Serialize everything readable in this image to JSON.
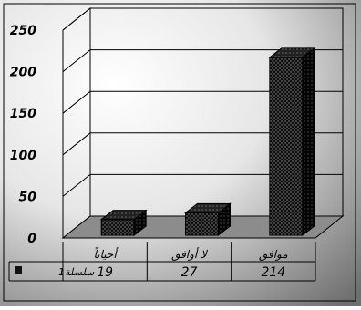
{
  "chart_data": {
    "type": "bar",
    "style": "3d-column",
    "categories": [
      "أحياناً",
      "لا أوافق",
      "موافق"
    ],
    "series": [
      {
        "name": "سلسلة1",
        "values": [
          19,
          27,
          214
        ]
      }
    ],
    "value_labels": [
      "19",
      "27",
      "214"
    ],
    "yticks": [
      "0",
      "50",
      "100",
      "150",
      "200",
      "250"
    ],
    "ylim": [
      0,
      250
    ],
    "grid": true,
    "legend": "data-table-left",
    "data_table": true,
    "colors": {
      "bar": "#111111",
      "bar_dots": "#8a8a8a",
      "floor": "#8c8c8c",
      "background_light": "#ffffff",
      "background_dark": "#6f6f6f"
    }
  }
}
